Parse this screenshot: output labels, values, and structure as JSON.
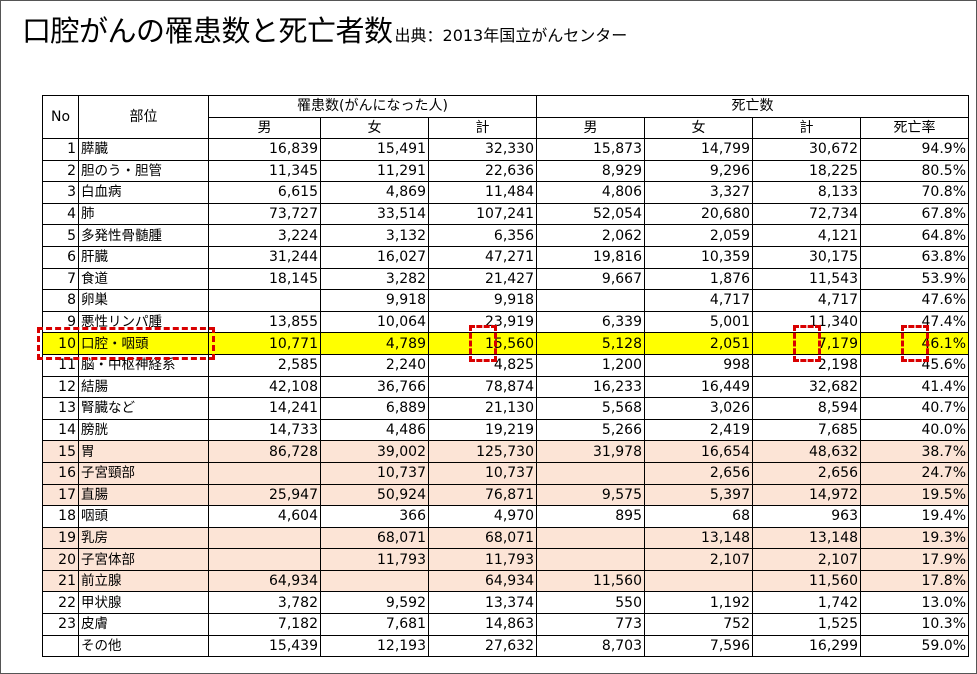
{
  "title": {
    "main": "口腔がんの罹患数と死亡者数",
    "source": "出典：2013年国立がんセンター"
  },
  "table": {
    "header": {
      "no": "No",
      "site": "部位",
      "incidence_group": "罹患数(がんになった人)",
      "death_group": "死亡数",
      "male": "男",
      "female": "女",
      "total": "計",
      "mortality_rate": "死亡率"
    },
    "rows": [
      {
        "no": "1",
        "site": "膵臓",
        "inc_m": "16,839",
        "inc_f": "15,491",
        "inc_t": "32,330",
        "d_m": "15,873",
        "d_f": "14,799",
        "d_t": "30,672",
        "rate": "94.9%"
      },
      {
        "no": "2",
        "site": "胆のう・胆管",
        "inc_m": "11,345",
        "inc_f": "11,291",
        "inc_t": "22,636",
        "d_m": "8,929",
        "d_f": "9,296",
        "d_t": "18,225",
        "rate": "80.5%"
      },
      {
        "no": "3",
        "site": "白血病",
        "inc_m": "6,615",
        "inc_f": "4,869",
        "inc_t": "11,484",
        "d_m": "4,806",
        "d_f": "3,327",
        "d_t": "8,133",
        "rate": "70.8%"
      },
      {
        "no": "4",
        "site": "肺",
        "inc_m": "73,727",
        "inc_f": "33,514",
        "inc_t": "107,241",
        "d_m": "52,054",
        "d_f": "20,680",
        "d_t": "72,734",
        "rate": "67.8%"
      },
      {
        "no": "5",
        "site": "多発性骨髄腫",
        "inc_m": "3,224",
        "inc_f": "3,132",
        "inc_t": "6,356",
        "d_m": "2,062",
        "d_f": "2,059",
        "d_t": "4,121",
        "rate": "64.8%"
      },
      {
        "no": "6",
        "site": "肝臓",
        "inc_m": "31,244",
        "inc_f": "16,027",
        "inc_t": "47,271",
        "d_m": "19,816",
        "d_f": "10,359",
        "d_t": "30,175",
        "rate": "63.8%"
      },
      {
        "no": "7",
        "site": "食道",
        "inc_m": "18,145",
        "inc_f": "3,282",
        "inc_t": "21,427",
        "d_m": "9,667",
        "d_f": "1,876",
        "d_t": "11,543",
        "rate": "53.9%"
      },
      {
        "no": "8",
        "site": "卵巣",
        "inc_m": "",
        "inc_f": "9,918",
        "inc_t": "9,918",
        "d_m": "",
        "d_f": "4,717",
        "d_t": "4,717",
        "rate": "47.6%"
      },
      {
        "no": "9",
        "site": "悪性リンパ腫",
        "inc_m": "13,855",
        "inc_f": "10,064",
        "inc_t": "23,919",
        "d_m": "6,339",
        "d_f": "5,001",
        "d_t": "11,340",
        "rate": "47.4%"
      },
      {
        "no": "10",
        "site": "口腔・咽頭",
        "inc_m": "10,771",
        "inc_f": "4,789",
        "inc_t": "15,560",
        "d_m": "5,128",
        "d_f": "2,051",
        "d_t": "7,179",
        "rate": "46.1%"
      },
      {
        "no": "11",
        "site": "脳・中枢神経系",
        "inc_m": "2,585",
        "inc_f": "2,240",
        "inc_t": "4,825",
        "d_m": "1,200",
        "d_f": "998",
        "d_t": "2,198",
        "rate": "45.6%"
      },
      {
        "no": "12",
        "site": "結腸",
        "inc_m": "42,108",
        "inc_f": "36,766",
        "inc_t": "78,874",
        "d_m": "16,233",
        "d_f": "16,449",
        "d_t": "32,682",
        "rate": "41.4%"
      },
      {
        "no": "13",
        "site": "腎臓など",
        "inc_m": "14,241",
        "inc_f": "6,889",
        "inc_t": "21,130",
        "d_m": "5,568",
        "d_f": "3,026",
        "d_t": "8,594",
        "rate": "40.7%"
      },
      {
        "no": "14",
        "site": "膀胱",
        "inc_m": "14,733",
        "inc_f": "4,486",
        "inc_t": "19,219",
        "d_m": "5,266",
        "d_f": "2,419",
        "d_t": "7,685",
        "rate": "40.0%"
      },
      {
        "no": "15",
        "site": "胃",
        "inc_m": "86,728",
        "inc_f": "39,002",
        "inc_t": "125,730",
        "d_m": "31,978",
        "d_f": "16,654",
        "d_t": "48,632",
        "rate": "38.7%"
      },
      {
        "no": "16",
        "site": "子宮頸部",
        "inc_m": "",
        "inc_f": "10,737",
        "inc_t": "10,737",
        "d_m": "",
        "d_f": "2,656",
        "d_t": "2,656",
        "rate": "24.7%"
      },
      {
        "no": "17",
        "site": "直腸",
        "inc_m": "25,947",
        "inc_f": "50,924",
        "inc_t": "76,871",
        "d_m": "9,575",
        "d_f": "5,397",
        "d_t": "14,972",
        "rate": "19.5%"
      },
      {
        "no": "18",
        "site": "咽頭",
        "inc_m": "4,604",
        "inc_f": "366",
        "inc_t": "4,970",
        "d_m": "895",
        "d_f": "68",
        "d_t": "963",
        "rate": "19.4%"
      },
      {
        "no": "19",
        "site": "乳房",
        "inc_m": "",
        "inc_f": "68,071",
        "inc_t": "68,071",
        "d_m": "",
        "d_f": "13,148",
        "d_t": "13,148",
        "rate": "19.3%"
      },
      {
        "no": "20",
        "site": "子宮体部",
        "inc_m": "",
        "inc_f": "11,793",
        "inc_t": "11,793",
        "d_m": "",
        "d_f": "2,107",
        "d_t": "2,107",
        "rate": "17.9%"
      },
      {
        "no": "21",
        "site": "前立腺",
        "inc_m": "64,934",
        "inc_f": "",
        "inc_t": "64,934",
        "d_m": "11,560",
        "d_f": "",
        "d_t": "11,560",
        "rate": "17.8%"
      },
      {
        "no": "22",
        "site": "甲状腺",
        "inc_m": "3,782",
        "inc_f": "9,592",
        "inc_t": "13,374",
        "d_m": "550",
        "d_f": "1,192",
        "d_t": "1,742",
        "rate": "13.0%"
      },
      {
        "no": "23",
        "site": "皮膚",
        "inc_m": "7,182",
        "inc_f": "7,681",
        "inc_t": "14,863",
        "d_m": "773",
        "d_f": "752",
        "d_t": "1,525",
        "rate": "10.3%"
      },
      {
        "no": "",
        "site": "その他",
        "inc_m": "15,439",
        "inc_f": "12,193",
        "inc_t": "27,632",
        "d_m": "8,703",
        "d_f": "7,596",
        "d_t": "16,299",
        "rate": "59.0%"
      }
    ]
  },
  "highlight": {
    "row_color": "#ffff00",
    "sex_specific_row_color": "#fce4d6",
    "dashed_box_color": "#d90000"
  }
}
